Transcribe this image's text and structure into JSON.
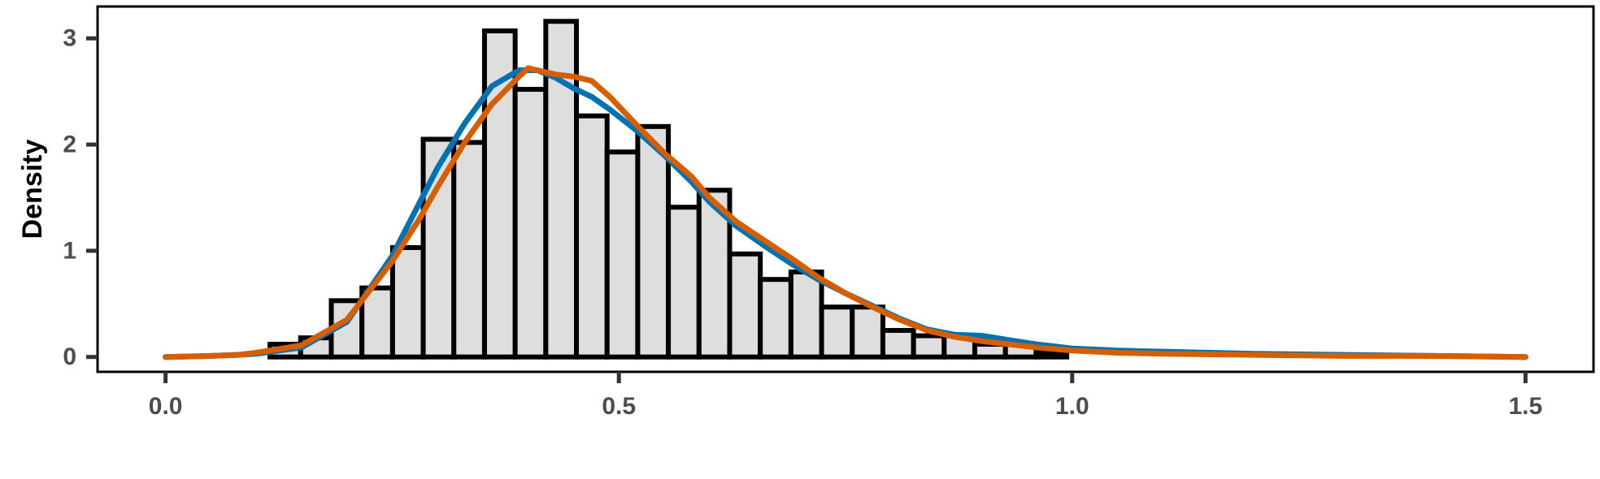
{
  "chart_data": {
    "type": "bar",
    "title": "",
    "xlabel": "",
    "ylabel": "Density",
    "xlim": [
      -0.075,
      1.575
    ],
    "ylim": [
      -0.14,
      3.3
    ],
    "x_ticks": [
      0.0,
      0.5,
      1.0,
      1.5
    ],
    "x_tick_labels": [
      "0.0",
      "0.5",
      "1.0",
      "1.5"
    ],
    "y_ticks": [
      0,
      1,
      2,
      3
    ],
    "y_tick_labels": [
      "0",
      "1",
      "2",
      "3"
    ],
    "grid": false,
    "legend": "none",
    "histogram": {
      "bin_width": 0.0338,
      "bins": [
        {
          "x0": 0.1152,
          "x1": 0.149,
          "density": 0.12
        },
        {
          "x0": 0.149,
          "x1": 0.1828,
          "density": 0.18
        },
        {
          "x0": 0.1828,
          "x1": 0.2166,
          "density": 0.53
        },
        {
          "x0": 0.2166,
          "x1": 0.2504,
          "density": 0.65
        },
        {
          "x0": 0.2504,
          "x1": 0.2842,
          "density": 1.03
        },
        {
          "x0": 0.2842,
          "x1": 0.318,
          "density": 2.05
        },
        {
          "x0": 0.318,
          "x1": 0.3518,
          "density": 2.02
        },
        {
          "x0": 0.3518,
          "x1": 0.3856,
          "density": 3.07
        },
        {
          "x0": 0.3856,
          "x1": 0.4194,
          "density": 2.52
        },
        {
          "x0": 0.4194,
          "x1": 0.4532,
          "density": 3.16
        },
        {
          "x0": 0.4532,
          "x1": 0.487,
          "density": 2.27
        },
        {
          "x0": 0.487,
          "x1": 0.5208,
          "density": 1.93
        },
        {
          "x0": 0.5208,
          "x1": 0.5546,
          "density": 2.17
        },
        {
          "x0": 0.5546,
          "x1": 0.5884,
          "density": 1.41
        },
        {
          "x0": 0.5884,
          "x1": 0.6222,
          "density": 1.57
        },
        {
          "x0": 0.6222,
          "x1": 0.656,
          "density": 0.97
        },
        {
          "x0": 0.656,
          "x1": 0.6898,
          "density": 0.73
        },
        {
          "x0": 0.6898,
          "x1": 0.7236,
          "density": 0.8
        },
        {
          "x0": 0.7236,
          "x1": 0.7574,
          "density": 0.47
        },
        {
          "x0": 0.7574,
          "x1": 0.7912,
          "density": 0.47
        },
        {
          "x0": 0.7912,
          "x1": 0.825,
          "density": 0.25
        },
        {
          "x0": 0.825,
          "x1": 0.8588,
          "density": 0.2
        },
        {
          "x0": 0.8588,
          "x1": 0.8926,
          "density": 0.2
        },
        {
          "x0": 0.8926,
          "x1": 0.9264,
          "density": 0.12
        },
        {
          "x0": 0.9264,
          "x1": 0.9602,
          "density": 0.12
        },
        {
          "x0": 0.9602,
          "x1": 0.994,
          "density": 0.04
        }
      ],
      "fill": "#dedede",
      "stroke": "#000000"
    },
    "series": [
      {
        "color": "#0072b2",
        "x": [
          0.0,
          0.05,
          0.08,
          0.1,
          0.15,
          0.2,
          0.25,
          0.28,
          0.3,
          0.33,
          0.36,
          0.39,
          0.41,
          0.43,
          0.45,
          0.47,
          0.49,
          0.52,
          0.55,
          0.58,
          0.6,
          0.63,
          0.66,
          0.69,
          0.72,
          0.75,
          0.78,
          0.81,
          0.84,
          0.87,
          0.9,
          0.93,
          0.96,
          1.0,
          1.05,
          1.1,
          1.2,
          1.3,
          1.4,
          1.5
        ],
        "y": [
          0.0,
          0.01,
          0.02,
          0.03,
          0.09,
          0.33,
          0.95,
          1.45,
          1.78,
          2.2,
          2.55,
          2.7,
          2.7,
          2.63,
          2.53,
          2.45,
          2.33,
          2.13,
          1.9,
          1.65,
          1.46,
          1.23,
          1.05,
          0.88,
          0.73,
          0.6,
          0.48,
          0.36,
          0.26,
          0.21,
          0.2,
          0.16,
          0.12,
          0.08,
          0.06,
          0.05,
          0.03,
          0.02,
          0.01,
          0.0
        ]
      },
      {
        "color": "#d55e00",
        "x": [
          0.0,
          0.05,
          0.08,
          0.1,
          0.15,
          0.2,
          0.25,
          0.28,
          0.3,
          0.33,
          0.36,
          0.39,
          0.4,
          0.41,
          0.43,
          0.45,
          0.47,
          0.49,
          0.52,
          0.55,
          0.58,
          0.6,
          0.63,
          0.66,
          0.69,
          0.72,
          0.75,
          0.78,
          0.81,
          0.84,
          0.87,
          0.9,
          0.93,
          0.96,
          1.0,
          1.05,
          1.1,
          1.2,
          1.3,
          1.4,
          1.5
        ],
        "y": [
          0.0,
          0.01,
          0.02,
          0.04,
          0.11,
          0.35,
          0.9,
          1.3,
          1.6,
          2.02,
          2.38,
          2.64,
          2.72,
          2.7,
          2.66,
          2.64,
          2.6,
          2.45,
          2.18,
          1.92,
          1.7,
          1.5,
          1.27,
          1.1,
          0.93,
          0.75,
          0.6,
          0.47,
          0.35,
          0.25,
          0.19,
          0.15,
          0.12,
          0.09,
          0.06,
          0.04,
          0.03,
          0.02,
          0.01,
          0.01,
          0.0
        ]
      }
    ]
  }
}
